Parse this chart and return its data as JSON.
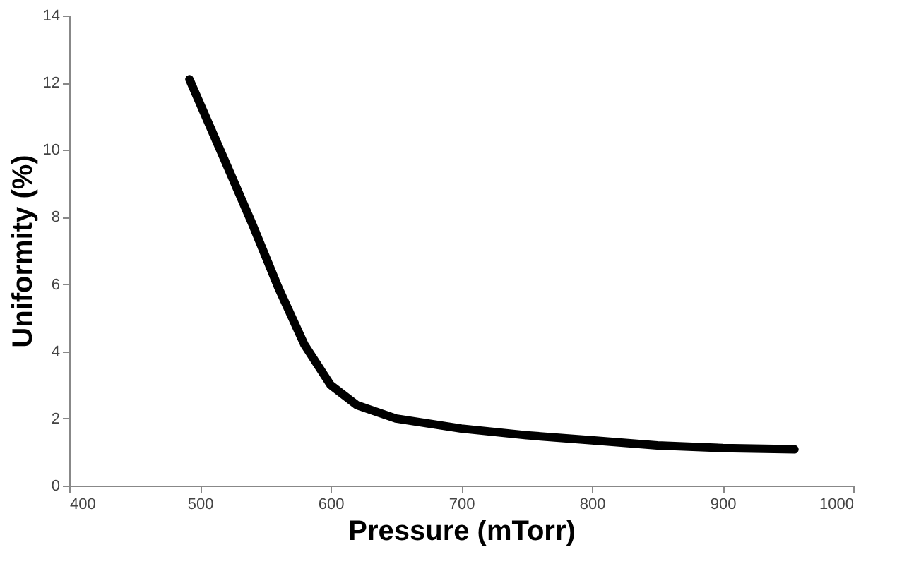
{
  "chart_data": {
    "type": "line",
    "xlabel": "Pressure (mTorr)",
    "ylabel": "Uniformity (%)",
    "x": [
      492,
      520,
      540,
      560,
      580,
      600,
      620,
      650,
      700,
      750,
      800,
      850,
      900,
      955
    ],
    "series": [
      {
        "color": "#000000",
        "values": [
          12.1,
          9.6,
          7.8,
          5.9,
          4.2,
          3.0,
          2.4,
          2.0,
          1.7,
          1.5,
          1.35,
          1.2,
          1.12,
          1.08
        ]
      }
    ],
    "xlim": [
      400,
      1000
    ],
    "ylim": [
      0,
      14
    ],
    "xticks": [
      400,
      500,
      600,
      700,
      800,
      900,
      1000
    ],
    "yticks": [
      0,
      2,
      4,
      6,
      8,
      10,
      12,
      14
    ],
    "grid": false,
    "marker": "none",
    "line_style": "solid"
  }
}
